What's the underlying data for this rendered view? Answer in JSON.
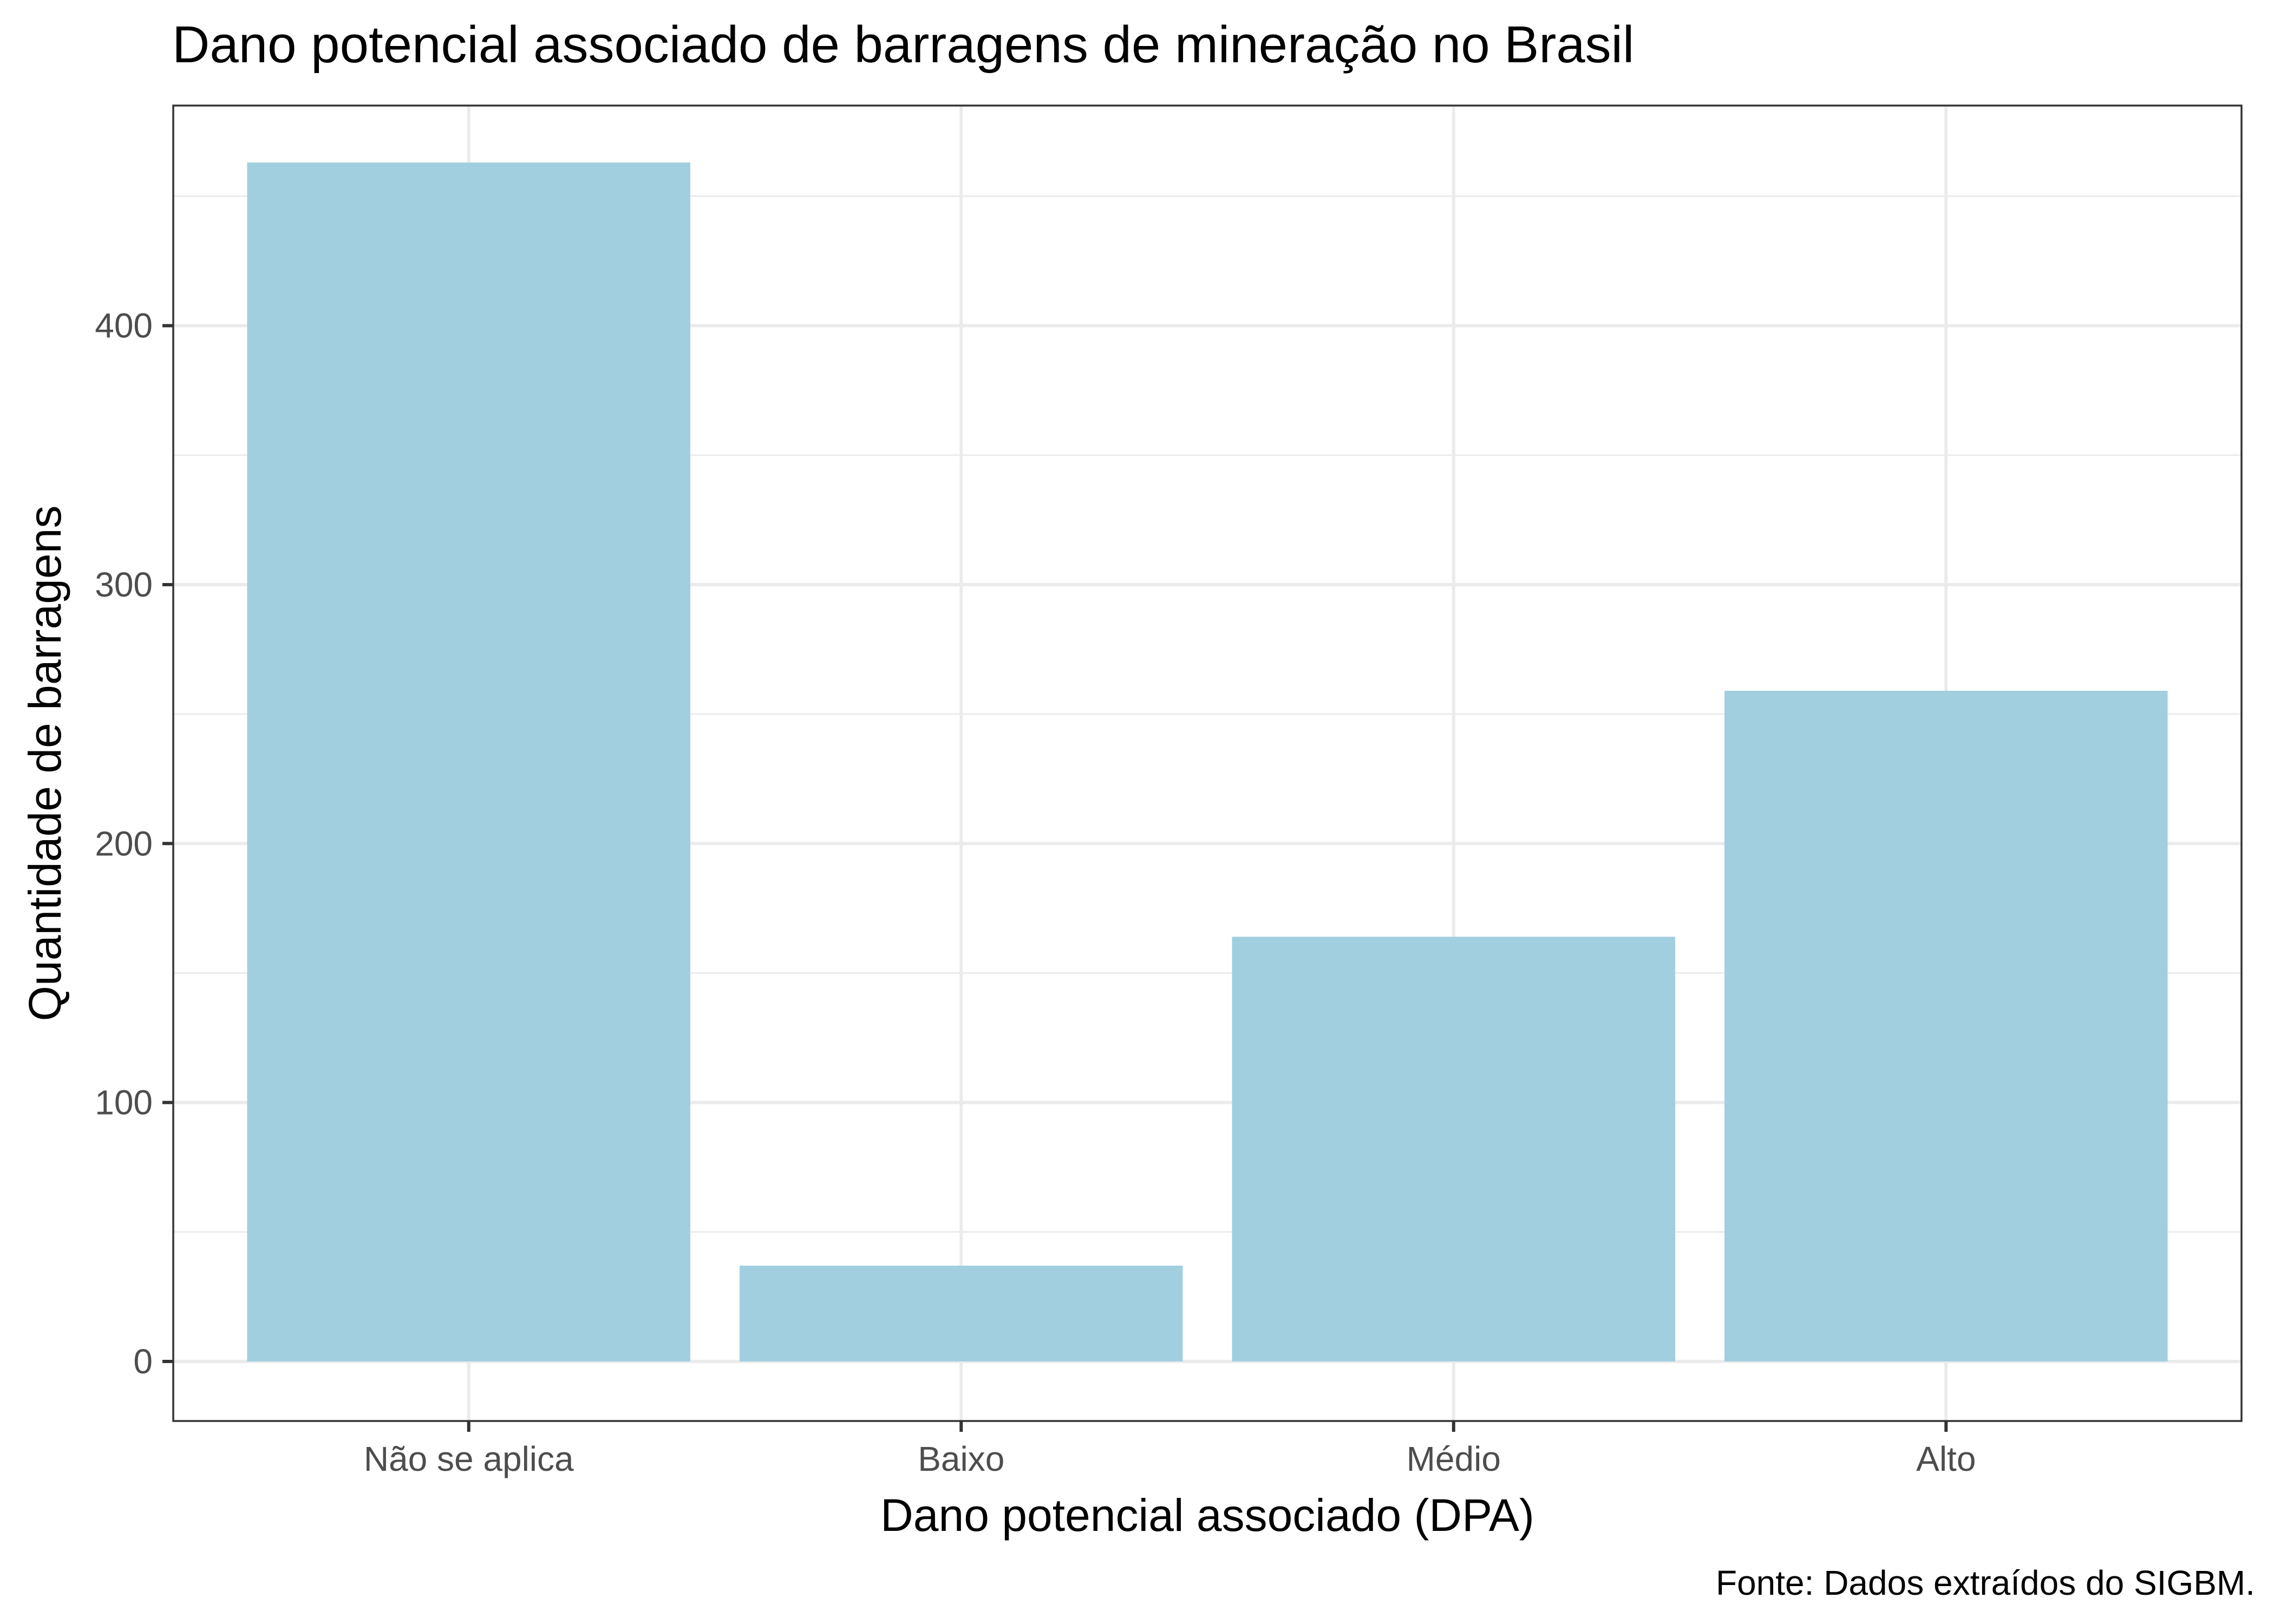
{
  "chart_data": {
    "type": "bar",
    "title": "Dano potencial associado de barragens de mineração no Brasil",
    "xlabel": "Dano potencial associado (DPA)",
    "ylabel": "Quantidade de barragens",
    "caption": "Fonte: Dados extraídos do SIGBM.",
    "categories": [
      "Não se aplica",
      "Baixo",
      "Médio",
      "Alto"
    ],
    "values": [
      463,
      37,
      164,
      259
    ],
    "ylim": [
      -23,
      485
    ],
    "yticks": [
      0,
      100,
      200,
      300,
      400
    ],
    "yminor": [
      50,
      150,
      250,
      350,
      450
    ],
    "bar_color": "#a1cfe0",
    "grid": true
  }
}
